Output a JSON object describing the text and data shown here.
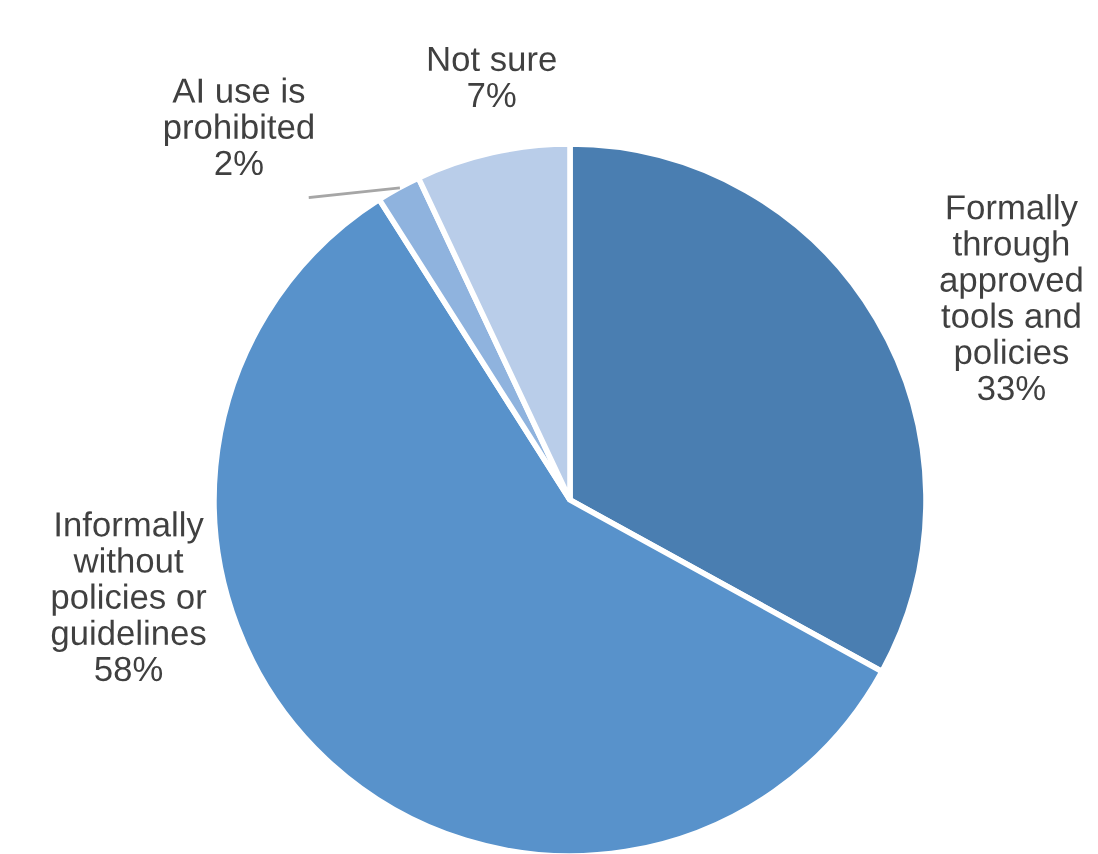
{
  "chart_data": {
    "type": "pie",
    "categories": [
      "Formally\nthrough\napproved\ntools and\npolicies",
      "Informally\nwithout\npolicies or\nguidelines",
      "AI use is\nprohibited",
      "Not sure"
    ],
    "values": [
      33,
      58,
      2,
      7
    ],
    "colors": [
      "#4a7eb1",
      "#5892cb",
      "#8fb3de",
      "#b9cde9"
    ],
    "value_labels": [
      "33%",
      "58%",
      "2%",
      "7%"
    ],
    "legend": false
  }
}
